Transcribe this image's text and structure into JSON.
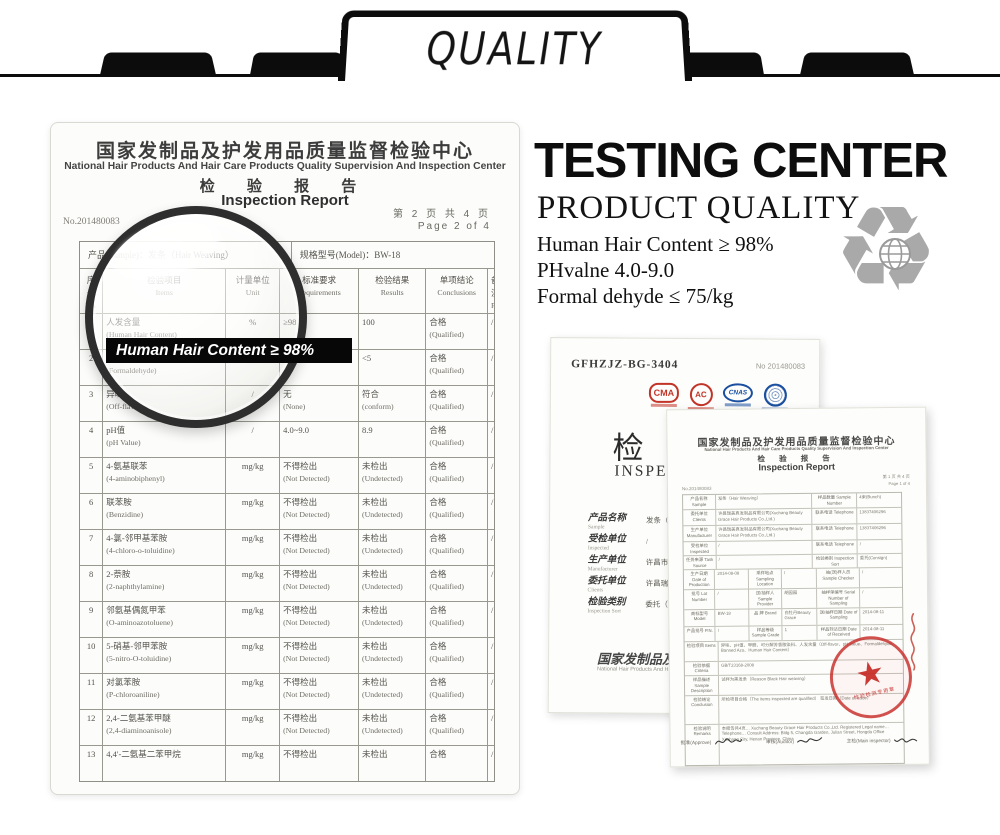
{
  "colors": {
    "banner_black": "#0c0c0c",
    "stamp_red": "#c23428",
    "logo_red": "#c23428",
    "logo_blue": "#1a4fa0",
    "recycle_gray": "#a9a9a9"
  },
  "banner": {
    "title": "QUALITY"
  },
  "testing": {
    "heading": "TESTING CENTER",
    "subheading": "PRODUCT QUALITY",
    "specs": [
      "Human Hair Content ≥ 98%",
      "PHvalne 4.0-9.0",
      "Formal dehyde ≤ 75/kg"
    ]
  },
  "magnifier_label": "Human Hair Content ≥ 98%",
  "report": {
    "title_cn": "国家发制品及护发用品质量监督检验中心",
    "title_en": "National Hair Products And Hair Care Products Quality Supervision And Inspection Center",
    "report_cn": "检 验 报 告",
    "report_en": "Inspection Report",
    "page_cn": "第 2 页 共 4 页",
    "page_en": "Page 2 of 4",
    "doc_no": "No.201480083",
    "sample_label": "产品(Sample)：发条（Hair Weaving）",
    "model_label": "规格型号(Model)：BW-18",
    "columns": [
      {
        "cn": "序号",
        "en": "No."
      },
      {
        "cn": "检验项目",
        "en": "Items"
      },
      {
        "cn": "计量单位",
        "en": "Unit"
      },
      {
        "cn": "标准要求",
        "en": "Requirements"
      },
      {
        "cn": "检验结果",
        "en": "Results"
      },
      {
        "cn": "单项结论",
        "en": "Conclusions"
      },
      {
        "cn": "备注",
        "en": "Remarks"
      }
    ],
    "rows": [
      [
        "1",
        "人发含量",
        "(Human Hair Content)",
        "%",
        "≥98",
        "",
        "100",
        "",
        "合格",
        "(Qualified)",
        "/"
      ],
      [
        "2",
        "甲醛",
        "(Formaldehyde)",
        "mg/kg",
        "≤75",
        "",
        "<5",
        "",
        "合格",
        "(Qualified)",
        "/"
      ],
      [
        "3",
        "异味",
        "(Off-flavor)",
        "/",
        "无",
        "(None)",
        "符合",
        "(conform)",
        "合格",
        "(Qualified)",
        "/"
      ],
      [
        "4",
        "pH值",
        "(pH Value)",
        "/",
        "4.0~9.0",
        "",
        "8.9",
        "",
        "合格",
        "(Qualified)",
        "/"
      ],
      [
        "5",
        "4-氨基联苯",
        "(4-aminobiphenyl)",
        "mg/kg",
        "不得检出",
        "(Not Detected)",
        "未检出",
        "(Undetected)",
        "合格",
        "(Qualified)",
        "/"
      ],
      [
        "6",
        "联苯胺",
        "(Benzidine)",
        "mg/kg",
        "不得检出",
        "(Not Detected)",
        "未检出",
        "(Undetected)",
        "合格",
        "(Qualified)",
        "/"
      ],
      [
        "7",
        "4-氯-邻甲基苯胺",
        "(4-chloro-o-toluidine)",
        "mg/kg",
        "不得检出",
        "(Not Detected)",
        "未检出",
        "(Undetected)",
        "合格",
        "(Qualified)",
        "/"
      ],
      [
        "8",
        "2-萘胺",
        "(2-naphthylamine)",
        "mg/kg",
        "不得检出",
        "(Not Detected)",
        "未检出",
        "(Undetected)",
        "合格",
        "(Qualified)",
        "/"
      ],
      [
        "9",
        "邻氨基偶氮甲苯",
        "(O-aminoazotoluene)",
        "mg/kg",
        "不得检出",
        "(Not Detected)",
        "未检出",
        "(Undetected)",
        "合格",
        "(Qualified)",
        "/"
      ],
      [
        "10",
        "5-硝基-邻甲苯胺",
        "(5-nitro-O-toluidine)",
        "mg/kg",
        "不得检出",
        "(Not Detected)",
        "未检出",
        "(Undetected)",
        "合格",
        "(Qualified)",
        "/"
      ],
      [
        "11",
        "对氯苯胺",
        "(P-chloroaniline)",
        "mg/kg",
        "不得检出",
        "(Not Detected)",
        "未检出",
        "(Undetected)",
        "合格",
        "(Qualified)",
        "/"
      ],
      [
        "12",
        "2,4-二氨基苯甲醚",
        "(2,4-diaminoanisole)",
        "mg/kg",
        "不得检出",
        "(Not Detected)",
        "未检出",
        "(Undetected)",
        "合格",
        "(Qualified)",
        "/"
      ],
      [
        "13",
        "4,4'-二氨基二苯甲烷",
        "",
        "mg/kg",
        "不得检出",
        "",
        "未检出",
        "",
        "合格",
        "",
        "/"
      ]
    ]
  },
  "cert_back": {
    "code": "GFHZJZ-BG-3404",
    "no": "No 201480083",
    "logos": [
      "CMA",
      "AC",
      "CNAS",
      ""
    ],
    "big_cn": "检 验 报 告",
    "big_en": "INSPECTION REPORT",
    "fields": [
      {
        "cn": "产品名称",
        "en": "Sample",
        "val": "发条（Hair Weaving）"
      },
      {
        "cn": "受检单位",
        "en": "Inspected",
        "val": "/"
      },
      {
        "cn": "生产单位",
        "en": "Manufacturer",
        "val": "许昌市瑞美真发制品有限公司 Grace Hair Products"
      },
      {
        "cn": "委托单位",
        "en": "Clients",
        "val": "许昌瑞美真发制品有限公司 Grace Hair Products"
      },
      {
        "cn": "检验类别",
        "en": "Inspection Sort",
        "val": "委托（Consign）"
      }
    ],
    "footer_cn": "国家发制品及护发用品质量监督检验中心",
    "footer_en": "National Hair Products And Hair Care Products Quality Supervision And Inspection Center"
  },
  "cert_front": {
    "title_cn": "国家发制品及护发用品质量监督检验中心",
    "title_en": "National Hair Products And Hair Care Products Quality Supervision And Inspection Center",
    "rep_cn": "检 验 报 告",
    "rep_en": "Inspection Report",
    "page_cn": "第 1 页 共 4 页",
    "page_en": "Page 1 of 4",
    "no": "No.201480083",
    "table": [
      {
        "h": 14,
        "cells": [
          [
            "产品名称 Sample",
            14
          ],
          [
            "发条（Hair Weaving）",
            46
          ],
          [
            "样品数量 Sample Number",
            20
          ],
          [
            "4束(Bunch)",
            20
          ]
        ]
      },
      {
        "h": 15,
        "cells": [
          [
            "委托单位 Clients",
            14
          ],
          [
            "许昌瑞美真发制品有限公司(Xuchang Beauty Grace Hair Products Co.,Ltd.)",
            46
          ],
          [
            "联系电话 Telephone",
            20
          ],
          [
            "13837406296",
            20
          ]
        ]
      },
      {
        "h": 15,
        "cells": [
          [
            "生产单位 Manufacturer",
            14
          ],
          [
            "许昌瑞美真发制品有限公司(Xuchang Beauty Grace Hair Products Co.,Ltd.)",
            46
          ],
          [
            "联系电话 Telephone",
            20
          ],
          [
            "13837406296",
            20
          ]
        ]
      },
      {
        "h": 13,
        "cells": [
          [
            "受检单位 Inspected",
            14
          ],
          [
            "/",
            46
          ],
          [
            "联系电话 Telephone",
            20
          ],
          [
            "/",
            20
          ]
        ]
      },
      {
        "h": 13,
        "cells": [
          [
            "任务来源 Task Source",
            14
          ],
          [
            "/",
            46
          ],
          [
            "检验类别 Inspection Sort",
            20
          ],
          [
            "委托(Consign)",
            20
          ]
        ]
      },
      {
        "h": 16,
        "cells": [
          [
            "生产日期 Date of Production",
            14
          ],
          [
            "2014-08-08",
            15
          ],
          [
            "采样地点 Sampling Location",
            15
          ],
          [
            "/",
            16
          ],
          [
            "抽(送)样人员 Sample Checker",
            20
          ],
          [
            "/",
            20
          ]
        ]
      },
      {
        "h": 16,
        "cells": [
          [
            "批号 Lot Number",
            14
          ],
          [
            "/",
            15
          ],
          [
            "送/抽样人 Sample Provider",
            15
          ],
          [
            "胡园园",
            16
          ],
          [
            "抽样单编号 Serial Number of Sampling",
            20
          ],
          [
            "/",
            20
          ]
        ]
      },
      {
        "h": 16,
        "cells": [
          [
            "商标型号 Model",
            14
          ],
          [
            "BW-18",
            15
          ],
          [
            "品 牌 Brand",
            15
          ],
          [
            "白牡丹Beauty Grace",
            16
          ],
          [
            "送/抽样日期 Date of Sampling",
            20
          ],
          [
            "2014-08-11",
            20
          ]
        ]
      },
      {
        "h": 14,
        "cells": [
          [
            "产品批号 P.N.",
            14
          ],
          [
            "/",
            15
          ],
          [
            "样品等级 Sample Grade",
            15
          ],
          [
            "1",
            16
          ],
          [
            "样品到达日期 Date of Received",
            20
          ],
          [
            "2014-08-11",
            20
          ]
        ]
      },
      {
        "h": 19,
        "cells": [
          [
            "检验项目 Items",
            14
          ],
          [
            "异味、pH值、甲醛、可分解芳香胺染料、人发含量（Off-flavor、pH Value、Formaldehyde、Banned Azo、Human Hair Content）",
            86
          ]
        ]
      },
      {
        "h": 11,
        "cells": [
          [
            "检验依据 Criteria",
            14
          ],
          [
            "GB/T23168-2008",
            86
          ]
        ]
      },
      {
        "h": 12,
        "cells": [
          [
            "样品描述 Sample Description",
            14
          ],
          [
            "试样为黑发条（Reason Black Hair weaving）",
            86
          ]
        ]
      },
      {
        "h": 28,
        "cells": [
          [
            "检验结论 Conclusion",
            14
          ],
          [
            "所检项目合格（The items inspected are qualified）    签发日期（Date of Issue）",
            86
          ]
        ]
      },
      {
        "h": 40,
        "cells": [
          [
            "检验说明 Remarks",
            14
          ],
          [
            "本报告共4页… Xuchang Beauty Grace Hair Products Co.,Ltd. Registered Legal name… Telephone… Consult Address: Bldg 5, Changda Garden, Julian Street, Hongda Office Xuchang City, Henan Province, China",
            86
          ]
        ]
      }
    ],
    "sig_labels": [
      "批准(Approve)",
      "审核(Auditor)",
      "主检(Main inspector)"
    ],
    "stamp": {
      "star": "★",
      "text": "检验检测专用章"
    }
  }
}
